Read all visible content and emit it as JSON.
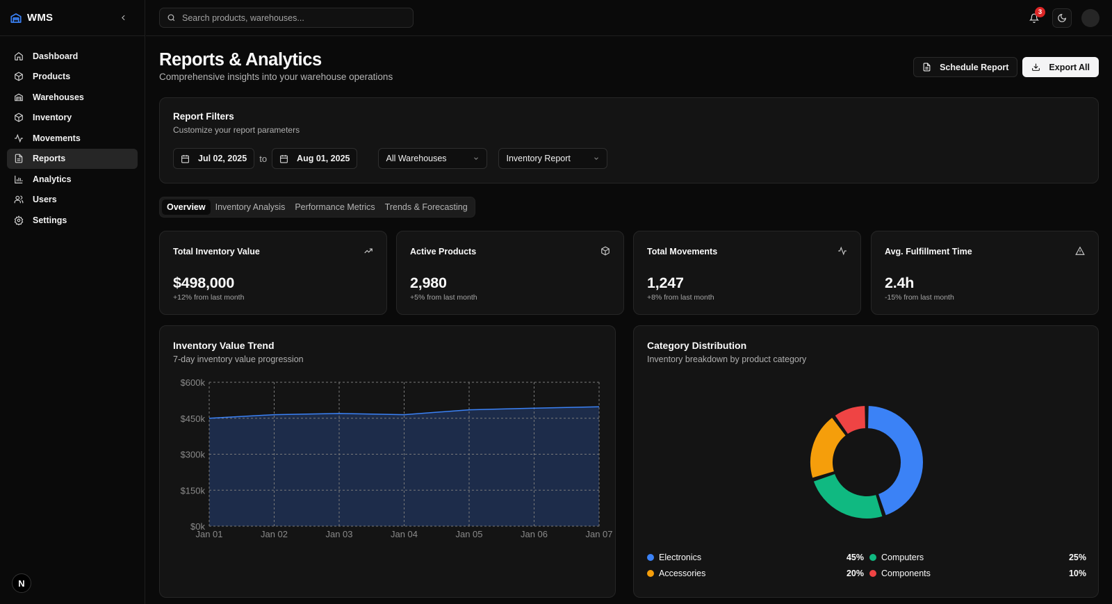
{
  "app": {
    "name": "WMS"
  },
  "sidebar": {
    "items": [
      {
        "label": "Dashboard",
        "icon": "home-icon"
      },
      {
        "label": "Products",
        "icon": "package-icon"
      },
      {
        "label": "Warehouses",
        "icon": "warehouse-icon"
      },
      {
        "label": "Inventory",
        "icon": "box-icon"
      },
      {
        "label": "Movements",
        "icon": "activity-icon"
      },
      {
        "label": "Reports",
        "icon": "file-text-icon",
        "active": true
      },
      {
        "label": "Analytics",
        "icon": "bar-chart-icon"
      },
      {
        "label": "Users",
        "icon": "users-icon"
      },
      {
        "label": "Settings",
        "icon": "gear-icon"
      }
    ],
    "footer_badge": "N"
  },
  "topbar": {
    "search_placeholder": "Search products, warehouses...",
    "notification_count": "3"
  },
  "page": {
    "title": "Reports & Analytics",
    "subtitle": "Comprehensive insights into your warehouse operations",
    "schedule_label": "Schedule Report",
    "export_label": "Export All"
  },
  "filters": {
    "title": "Report Filters",
    "subtitle": "Customize your report parameters",
    "date_from": "Jul 02, 2025",
    "date_separator": "to",
    "date_to": "Aug 01, 2025",
    "warehouse": "All Warehouses",
    "report_type": "Inventory Report"
  },
  "tabs": [
    "Overview",
    "Inventory Analysis",
    "Performance Metrics",
    "Trends & Forecasting"
  ],
  "stats": [
    {
      "label": "Total Inventory Value",
      "value": "$498,000",
      "change": "+12% from last month",
      "icon": "trending-up-icon"
    },
    {
      "label": "Active Products",
      "value": "2,980",
      "change": "+5% from last month",
      "icon": "package-icon"
    },
    {
      "label": "Total Movements",
      "value": "1,247",
      "change": "+8% from last month",
      "icon": "activity-icon"
    },
    {
      "label": "Avg. Fulfillment Time",
      "value": "2.4h",
      "change": "-15% from last month",
      "icon": "alert-triangle-icon"
    }
  ],
  "trend": {
    "title": "Inventory Value Trend",
    "subtitle": "7-day inventory value progression"
  },
  "distribution": {
    "title": "Category Distribution",
    "subtitle": "Inventory breakdown by product category"
  },
  "chart_data": [
    {
      "type": "area",
      "x": [
        "Jan 01",
        "Jan 02",
        "Jan 03",
        "Jan 04",
        "Jan 05",
        "Jan 06",
        "Jan 07"
      ],
      "series": [
        {
          "values": [
            450000,
            465000,
            470000,
            465000,
            485000,
            492000,
            498000
          ]
        }
      ],
      "yticks": [
        "$0k",
        "$150k",
        "$300k",
        "$450k",
        "$600k"
      ],
      "ylim": [
        0,
        600000
      ],
      "grid": true,
      "color": "#3b82f6",
      "fill": "#1e2d4d"
    },
    {
      "type": "pie",
      "variant": "donut",
      "categories": [
        "Electronics",
        "Computers",
        "Accessories",
        "Components"
      ],
      "values": [
        45,
        25,
        20,
        10
      ],
      "labels": [
        "45%",
        "25%",
        "20%",
        "10%"
      ],
      "colors": [
        "#3b82f6",
        "#10b981",
        "#f59e0b",
        "#ef4444"
      ],
      "legend": "bottom"
    }
  ]
}
